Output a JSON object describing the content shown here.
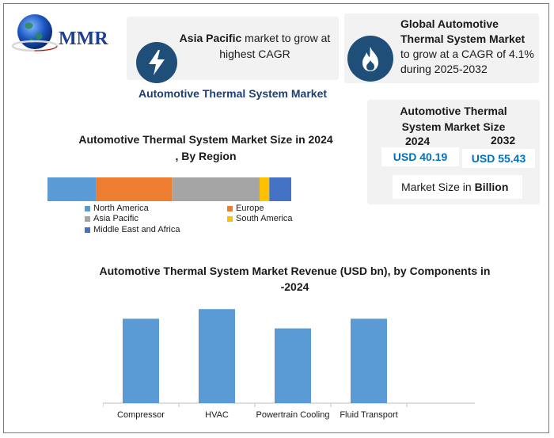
{
  "brand": {
    "name": "MMR"
  },
  "card1": {
    "bold_part": "Asia Pacific",
    "rest1": " market to grow at",
    "rest2": "highest CAGR"
  },
  "card2": {
    "line1": "Global Automotive",
    "line2": "Thermal System Market",
    "line3": "to grow at a CAGR of 4.1%",
    "line4": "during 2025-2032"
  },
  "subtitle": "Automotive Thermal System Market",
  "size_card": {
    "title_line1": "Automotive Thermal",
    "title_line2": "System Market Size",
    "year1": "2024",
    "year2": "2032",
    "value1": "USD 40.19",
    "value2": "USD 55.43",
    "unit_prefix": "Market Size in ",
    "unit_bold": "Billion"
  },
  "icons": {
    "card1": "lightning-bolt-icon",
    "card2": "flame-icon",
    "logo": "globe-icon"
  },
  "chart_data": [
    {
      "type": "bar",
      "orientation": "horizontal-stacked",
      "title": "Automotive Thermal System Market Size in 2024 , By Region",
      "title_line1": "Automotive Thermal System Market Size in 2024",
      "title_line2": ", By Region",
      "series": [
        {
          "name": "North America",
          "value": 20,
          "color": "#5b9bd5"
        },
        {
          "name": "Europe",
          "value": 31,
          "color": "#ed7d31"
        },
        {
          "name": "Asia Pacific",
          "value": 36,
          "color": "#a5a5a5"
        },
        {
          "name": "South America",
          "value": 4,
          "color": "#ffc000"
        },
        {
          "name": "Middle East and Africa",
          "value": 9,
          "color": "#4472c4"
        }
      ],
      "legend": "bottom"
    },
    {
      "type": "bar",
      "title": "Automotive Thermal System Market Revenue  (USD bn), by Components in -2024",
      "title_line1": "Automotive Thermal System Market Revenue  (USD bn), by Components in",
      "title_line2": "-2024",
      "categories": [
        "Compressor",
        "HVAC",
        "Powertrain Cooling",
        "Fluid Transport"
      ],
      "values": [
        10.5,
        11.7,
        9.3,
        10.5
      ],
      "ylim": [
        0,
        13.2
      ],
      "color": "#5b9bd5",
      "grid": false
    }
  ]
}
